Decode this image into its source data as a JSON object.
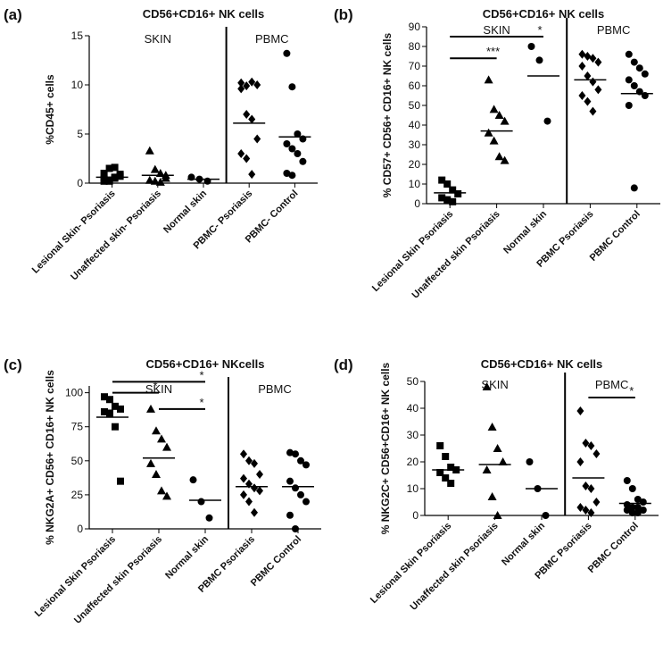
{
  "chart_data": [
    {
      "type": "dot",
      "panel": "(a)",
      "title": "CD56+CD16+ NK cells",
      "ylabel": "%CD45+ cells",
      "sections": [
        "SKIN",
        "PBMC"
      ],
      "categories": [
        "Lesional Skin- Psoriasis",
        "Unaffected skin- Psoriasis",
        "Normal skin",
        "PBMC- Psoriasis",
        "PBMC- Control"
      ],
      "markers": [
        "square",
        "triangle",
        "circle",
        "diamond",
        "circle"
      ],
      "points": [
        [
          0.2,
          0.3,
          0.5,
          0.7,
          1.0,
          1.5,
          1.6,
          0.9,
          0.4,
          0.2,
          0.6
        ],
        [
          3.3,
          1.4,
          1.0,
          0.8,
          0.3,
          0.2,
          0.1,
          0.5
        ],
        [
          0.6,
          0.4,
          0.2
        ],
        [
          10.2,
          9.9,
          10.3,
          10.0,
          9.6,
          7.0,
          6.5,
          4.5,
          3.0,
          2.5,
          0.9
        ],
        [
          13.2,
          9.8,
          5.0,
          4.5,
          4.0,
          3.5,
          3.0,
          2.2,
          1.0,
          0.8
        ]
      ],
      "means": [
        0.6,
        0.8,
        0.4,
        6.1,
        4.7
      ],
      "ylim": [
        0,
        15
      ],
      "yticks": [
        0,
        5,
        10,
        15
      ],
      "brackets": []
    },
    {
      "type": "dot",
      "panel": "(b)",
      "title": "CD56+CD16+ NK cells",
      "ylabel": "% CD57+ CD56+ CD16+ NK cells",
      "sections": [
        "SKIN",
        "PBMC"
      ],
      "categories": [
        "Lesional Skin Psoriasis",
        "Unaffected skin Psoriasis",
        "Normal skin",
        "PBMC Psoriasis",
        "PBMC Control"
      ],
      "markers": [
        "square",
        "triangle",
        "circle",
        "diamond",
        "circle"
      ],
      "points": [
        [
          12,
          10,
          7,
          5,
          3,
          2,
          1
        ],
        [
          63,
          48,
          45,
          42,
          36,
          32,
          24,
          22
        ],
        [
          80,
          73,
          42
        ],
        [
          76,
          75,
          74,
          72,
          70,
          65,
          62,
          58,
          55,
          52,
          47
        ],
        [
          76,
          72,
          69,
          66,
          63,
          60,
          57,
          55,
          50,
          8
        ]
      ],
      "means": [
        5.5,
        37,
        65,
        63,
        56
      ],
      "ylim": [
        0,
        90
      ],
      "yticks": [
        0,
        10,
        20,
        30,
        40,
        50,
        60,
        70,
        80,
        90
      ],
      "brackets": [
        {
          "from": 0,
          "to": 1,
          "label": "***",
          "y": 74
        },
        {
          "from": 0,
          "to": 2,
          "label": "*",
          "y": 85
        }
      ]
    },
    {
      "type": "dot",
      "panel": "(c)",
      "title": "CD56+CD16+ NKcells",
      "ylabel": "% NKG2A+ CD56+ CD16+ NK cells",
      "sections": [
        "SKIN",
        "PBMC"
      ],
      "categories": [
        "Lesional Skin Psoriasis",
        "Unaffected skin Psoriasis",
        "Normal skin",
        "PBMC Psoriasis",
        "PBMC Control"
      ],
      "markers": [
        "square",
        "triangle",
        "circle",
        "diamond",
        "circle"
      ],
      "points": [
        [
          97,
          95,
          90,
          88,
          86,
          85,
          75,
          35
        ],
        [
          88,
          72,
          66,
          60,
          48,
          40,
          28,
          24
        ],
        [
          36,
          20,
          8
        ],
        [
          55,
          50,
          48,
          40,
          37,
          33,
          30,
          28,
          25,
          20,
          12
        ],
        [
          56,
          55,
          50,
          47,
          35,
          30,
          25,
          20,
          10,
          0
        ]
      ],
      "means": [
        82,
        52,
        21,
        31,
        31
      ],
      "ylim": [
        0,
        105
      ],
      "yticks": [
        0,
        25,
        50,
        75,
        100
      ],
      "brackets": [
        {
          "from": 0,
          "to": 1,
          "label": "*",
          "y": 100
        },
        {
          "from": 0,
          "to": 2,
          "label": "*",
          "y": 108
        },
        {
          "from": 1,
          "to": 2,
          "label": "*",
          "y": 88
        }
      ]
    },
    {
      "type": "dot",
      "panel": "(d)",
      "title": "CD56+CD16+ NK cells",
      "ylabel": "% NKG2C+ CD56+CD16+ NK cells",
      "sections": [
        "SKIN",
        "PBMC"
      ],
      "categories": [
        "Lesional Skin Psoriasis",
        "Unaffected skin Psoriasis",
        "Normal skin",
        "PBMC Psoriasis",
        "PBMC Control"
      ],
      "markers": [
        "square",
        "triangle",
        "circle",
        "diamond",
        "circle"
      ],
      "points": [
        [
          26,
          22,
          18,
          17,
          16,
          14,
          12
        ],
        [
          48,
          33,
          25,
          20,
          17,
          7,
          0
        ],
        [
          20,
          10,
          0
        ],
        [
          39,
          27,
          26,
          23,
          20,
          11,
          10,
          5,
          3,
          2,
          1
        ],
        [
          13,
          10,
          6,
          5,
          4,
          3,
          3,
          2,
          2,
          1,
          1
        ]
      ],
      "means": [
        17,
        19,
        10,
        14,
        4.5
      ],
      "ylim": [
        0,
        50
      ],
      "yticks": [
        0,
        10,
        20,
        30,
        40,
        50
      ],
      "brackets": [
        {
          "from": 3,
          "to": 4,
          "label": "*",
          "y": 44
        }
      ]
    }
  ]
}
